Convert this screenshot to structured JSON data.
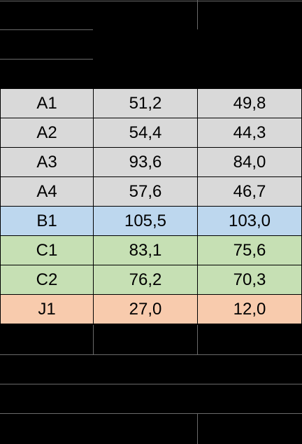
{
  "table": {
    "rows": [
      {
        "cells": [
          "A1",
          "51,2",
          "49,8"
        ],
        "color": "#d9d9d9"
      },
      {
        "cells": [
          "A2",
          "54,4",
          "44,3"
        ],
        "color": "#d9d9d9"
      },
      {
        "cells": [
          "A3",
          "93,6",
          "84,0"
        ],
        "color": "#d9d9d9"
      },
      {
        "cells": [
          "A4",
          "57,6",
          "46,7"
        ],
        "color": "#d9d9d9"
      },
      {
        "cells": [
          "B1",
          "105,5",
          "103,0"
        ],
        "color": "#bdd7ee"
      },
      {
        "cells": [
          "C1",
          "83,1",
          "75,6"
        ],
        "color": "#c6e0b4"
      },
      {
        "cells": [
          "C2",
          "76,2",
          "70,3"
        ],
        "color": "#c6e0b4"
      },
      {
        "cells": [
          "J1",
          "27,0",
          "12,0"
        ],
        "color": "#f8cbad"
      }
    ]
  }
}
